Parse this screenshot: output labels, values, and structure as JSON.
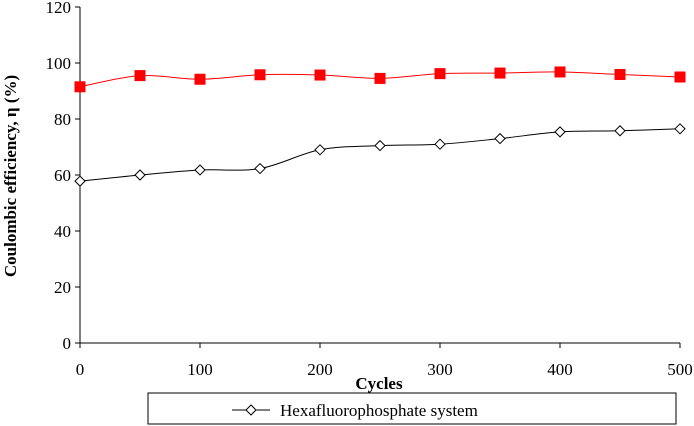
{
  "chart_data": {
    "type": "line",
    "xlabel": "Cycles",
    "ylabel": "Coulombic efficiency, η (%)",
    "xlim": [
      0,
      500
    ],
    "ylim": [
      0,
      120
    ],
    "xticks": [
      "0",
      "100",
      "200",
      "300",
      "400",
      "500"
    ],
    "yticks": [
      "0",
      "20",
      "40",
      "60",
      "80",
      "100",
      "120"
    ],
    "grid": false,
    "legend_position": "bottom",
    "x": [
      0,
      50,
      100,
      150,
      200,
      250,
      300,
      350,
      400,
      450,
      500
    ],
    "series": [
      {
        "marker": "square",
        "color": "#ff0000",
        "line_color": "#ff0000",
        "values": [
          91.5,
          95.5,
          94.2,
          95.8,
          95.7,
          94.5,
          96.2,
          96.4,
          96.8,
          95.9,
          95.0
        ]
      },
      {
        "name": "Hexafluorophosphate system",
        "marker": "diamond",
        "color": "#000000",
        "line_color": "#000000",
        "values": [
          57.8,
          60.0,
          61.8,
          62.3,
          69.0,
          70.5,
          71.0,
          73.0,
          75.4,
          75.8,
          76.5
        ]
      }
    ]
  }
}
